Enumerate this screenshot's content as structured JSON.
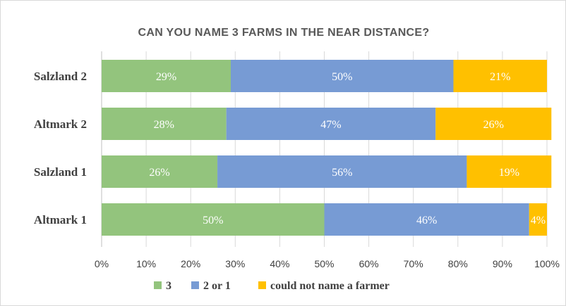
{
  "chart_data": {
    "type": "bar",
    "orientation": "horizontal",
    "stacked": true,
    "percent_stacked": true,
    "title": "CAN YOU NAME 3 FARMS IN THE NEAR DISTANCE?",
    "categories": [
      "Salzland 2",
      "Altmark 2",
      "Salzland 1",
      "Altmark 1"
    ],
    "series": [
      {
        "name": "3",
        "color": "#93c47d",
        "values": [
          29,
          28,
          26,
          50
        ],
        "labels": [
          "29%",
          "28%",
          "26%",
          "50%"
        ]
      },
      {
        "name": "2 or 1",
        "color": "#779bd4",
        "values": [
          50,
          47,
          56,
          46
        ],
        "labels": [
          "50%",
          "47%",
          "56%",
          "46%"
        ]
      },
      {
        "name": "could not name a farmer",
        "color": "#ffc000",
        "values": [
          21,
          26,
          19,
          4
        ],
        "labels": [
          "21%",
          "26%",
          "19%",
          "4%"
        ]
      }
    ],
    "xlim": [
      0,
      100
    ],
    "xticks": [
      "0%",
      "10%",
      "20%",
      "30%",
      "40%",
      "50%",
      "60%",
      "70%",
      "80%",
      "90%",
      "100%"
    ],
    "grid": true,
    "legend_position": "bottom"
  }
}
